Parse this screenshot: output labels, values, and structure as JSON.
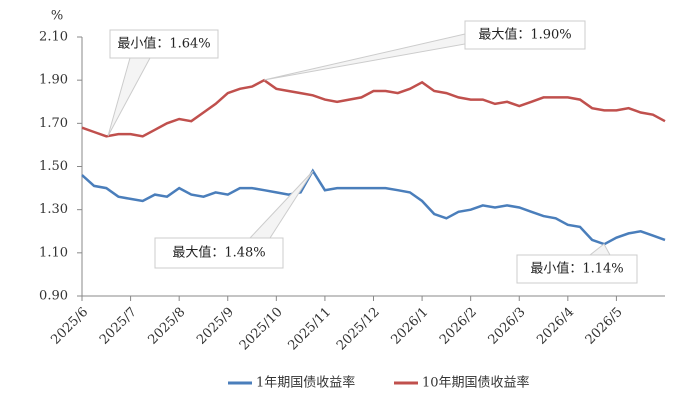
{
  "chart_data": {
    "type": "line",
    "y_unit": "%",
    "categories": [
      "2025/6",
      null,
      null,
      null,
      "2025/7",
      null,
      null,
      null,
      "2025/8",
      null,
      null,
      null,
      "2025/9",
      null,
      null,
      null,
      "2025/10",
      null,
      null,
      null,
      "2025/11",
      null,
      null,
      null,
      "2025/12",
      null,
      null,
      null,
      "2026/1",
      null,
      null,
      null,
      "2026/2",
      null,
      null,
      null,
      "2026/3",
      null,
      null,
      null,
      "2026/4",
      null,
      null,
      null,
      "2026/5",
      null,
      null,
      null,
      null
    ],
    "series": [
      {
        "name": "1年期国债收益率",
        "color": "#4a7ebb",
        "values": [
          1.46,
          1.41,
          1.4,
          1.36,
          1.35,
          1.34,
          1.37,
          1.36,
          1.4,
          1.37,
          1.36,
          1.38,
          1.37,
          1.4,
          1.4,
          1.39,
          1.38,
          1.37,
          1.38,
          1.48,
          1.39,
          1.4,
          1.4,
          1.4,
          1.4,
          1.4,
          1.39,
          1.38,
          1.34,
          1.28,
          1.26,
          1.29,
          1.3,
          1.32,
          1.31,
          1.32,
          1.31,
          1.29,
          1.27,
          1.26,
          1.23,
          1.22,
          1.16,
          1.14,
          1.17,
          1.19,
          1.2,
          1.18,
          1.16
        ]
      },
      {
        "name": "10年期国债收益率",
        "color": "#c0504d",
        "values": [
          1.68,
          1.66,
          1.64,
          1.65,
          1.65,
          1.64,
          1.67,
          1.7,
          1.72,
          1.71,
          1.75,
          1.79,
          1.84,
          1.86,
          1.87,
          1.9,
          1.86,
          1.85,
          1.84,
          1.83,
          1.81,
          1.8,
          1.81,
          1.82,
          1.85,
          1.85,
          1.84,
          1.86,
          1.89,
          1.85,
          1.84,
          1.82,
          1.81,
          1.81,
          1.79,
          1.8,
          1.78,
          1.8,
          1.82,
          1.82,
          1.82,
          1.81,
          1.77,
          1.76,
          1.76,
          1.77,
          1.75,
          1.74,
          1.71
        ]
      }
    ],
    "ylim": [
      0.9,
      2.1
    ],
    "yticks": [
      {
        "value": 0.9,
        "label": "0.90"
      },
      {
        "value": 1.1,
        "label": "1.10"
      },
      {
        "value": 1.3,
        "label": "1.30"
      },
      {
        "value": 1.5,
        "label": "1.50"
      },
      {
        "value": 1.7,
        "label": "1.70"
      },
      {
        "value": 1.9,
        "label": "1.90"
      },
      {
        "value": 2.1,
        "label": "2.10"
      }
    ],
    "annotations": [
      "最小值：1.64%",
      "最大值：1.90%",
      "最大值：1.48%",
      "最小值：1.14%"
    ]
  }
}
